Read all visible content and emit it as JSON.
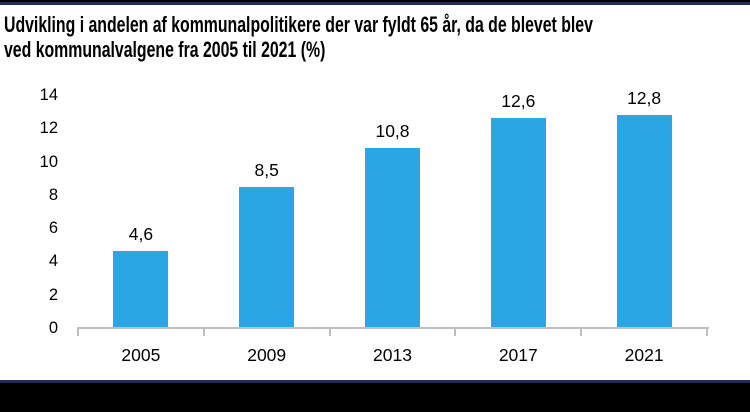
{
  "title": "Udvikling i andelen af kommunalpolitikere der var fyldt 65 år, da de blevet blev\nved kommunalvalgene fra 2005 til 2021 (%)",
  "colors": {
    "bar": "#2AA6E4",
    "navy": "#212A58",
    "black": "#000000",
    "axis": "#BFBFBF",
    "text": "#000000",
    "background": "#FFFFFF"
  },
  "chart_data": {
    "type": "bar",
    "title": "Udvikling i andelen af kommunalpolitikere der var fyldt 65 år, da de blevet blev ved kommunalvalgene fra 2005 til 2021 (%)",
    "categories": [
      "2005",
      "2009",
      "2013",
      "2017",
      "2021"
    ],
    "values": [
      4.6,
      8.5,
      10.8,
      12.6,
      12.8
    ],
    "value_labels": [
      "4,6",
      "8,5",
      "10,8",
      "12,6",
      "12,8"
    ],
    "xlabel": "",
    "ylabel": "",
    "ylim": [
      0,
      14
    ],
    "yticks": [
      0,
      2,
      4,
      6,
      8,
      10,
      12,
      14
    ],
    "grid": false,
    "legend": false,
    "decimal_separator": ","
  }
}
